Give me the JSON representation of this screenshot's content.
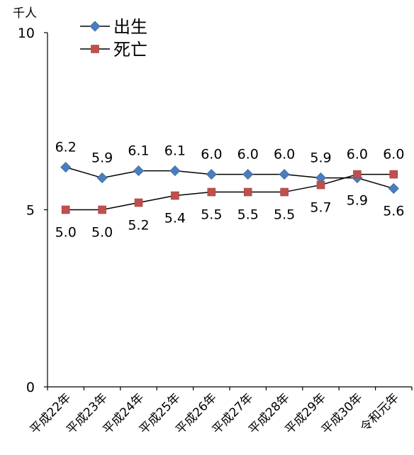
{
  "chart_data": {
    "type": "line",
    "unit_label": "千人",
    "categories": [
      "平成22年",
      "平成23年",
      "平成24年",
      "平成25年",
      "平成26年",
      "平成27年",
      "平成28年",
      "平成29年",
      "平成30年",
      "令和元年"
    ],
    "ylim": [
      0,
      10
    ],
    "yticks": [
      0,
      5,
      10
    ],
    "grid": false,
    "legend_position": "top-left",
    "series": [
      {
        "name": "出生",
        "marker": "diamond",
        "color": "#4a7ebb",
        "values": [
          6.2,
          5.9,
          6.1,
          6.1,
          6.0,
          6.0,
          6.0,
          5.9,
          5.9,
          5.6
        ]
      },
      {
        "name": "死亡",
        "marker": "square",
        "color": "#c0504d",
        "values": [
          5.0,
          5.0,
          5.2,
          5.4,
          5.5,
          5.5,
          5.5,
          5.7,
          6.0,
          6.0
        ]
      }
    ]
  }
}
